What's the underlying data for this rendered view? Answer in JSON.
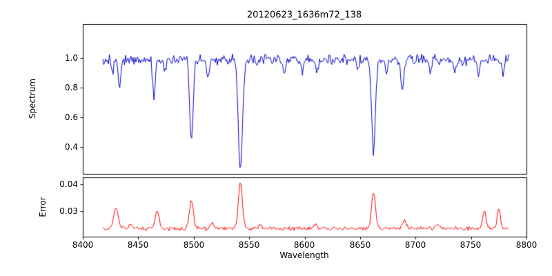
{
  "chart_data": {
    "type": "line",
    "title": "20120623_1636m72_138",
    "xlabel": "Wavelength",
    "xlim": [
      8400,
      8800
    ],
    "x_tick_labels": [
      "8400",
      "8450",
      "8500",
      "8550",
      "8600",
      "8650",
      "8700",
      "8750",
      "8800"
    ],
    "grid": false,
    "legend": "none",
    "subplots": [
      {
        "name": "spectrum",
        "ylabel": "Spectrum",
        "ylim": [
          0.22,
          1.23
        ],
        "y_tick_labels": [
          "1.0",
          "0.8",
          "0.6",
          "0.4"
        ],
        "y_ticks": [
          1.0,
          0.8,
          0.6,
          0.4
        ],
        "line_color": "#0000cd",
        "x_start": 8418,
        "x_end": 8784,
        "n_points": 430,
        "continuum": 0.99,
        "noise_amplitude": 0.045,
        "absorption_lines": [
          {
            "center": 8427.0,
            "depth": 0.1,
            "width": 1.0
          },
          {
            "center": 8433.0,
            "depth": 0.17,
            "width": 1.2
          },
          {
            "center": 8464.0,
            "depth": 0.24,
            "width": 1.1
          },
          {
            "center": 8474.0,
            "depth": 0.1,
            "width": 1.0
          },
          {
            "center": 8498.0,
            "depth": 0.54,
            "width": 1.5
          },
          {
            "center": 8513.0,
            "depth": 0.13,
            "width": 1.0
          },
          {
            "center": 8542.1,
            "depth": 0.73,
            "width": 1.9
          },
          {
            "center": 8582.0,
            "depth": 0.1,
            "width": 1.0
          },
          {
            "center": 8598.0,
            "depth": 0.09,
            "width": 1.0
          },
          {
            "center": 8611.0,
            "depth": 0.1,
            "width": 1.0
          },
          {
            "center": 8648.0,
            "depth": 0.08,
            "width": 1.0
          },
          {
            "center": 8662.1,
            "depth": 0.63,
            "width": 1.7
          },
          {
            "center": 8674.0,
            "depth": 0.1,
            "width": 1.0
          },
          {
            "center": 8688.0,
            "depth": 0.24,
            "width": 1.2
          },
          {
            "center": 8713.0,
            "depth": 0.09,
            "width": 1.0
          },
          {
            "center": 8736.0,
            "depth": 0.08,
            "width": 1.0
          },
          {
            "center": 8757.0,
            "depth": 0.12,
            "width": 1.0
          },
          {
            "center": 8779.0,
            "depth": 0.12,
            "width": 1.0
          }
        ]
      },
      {
        "name": "error",
        "ylabel": "Error",
        "ylim": [
          0.0205,
          0.0425
        ],
        "y_tick_labels": [
          "0.04",
          "0.03"
        ],
        "y_ticks": [
          0.04,
          0.03
        ],
        "line_color": "#ff0000",
        "x_start": 8418,
        "x_end": 8784,
        "n_points": 430,
        "baseline": 0.0235,
        "noise_amplitude": 0.0009,
        "peaks": [
          {
            "center": 8430.0,
            "height": 0.0075,
            "width": 2.0
          },
          {
            "center": 8443.0,
            "height": 0.0015,
            "width": 1.5
          },
          {
            "center": 8467.0,
            "height": 0.0065,
            "width": 1.8
          },
          {
            "center": 8498.0,
            "height": 0.011,
            "width": 1.8
          },
          {
            "center": 8516.0,
            "height": 0.002,
            "width": 1.5
          },
          {
            "center": 8542.1,
            "height": 0.017,
            "width": 1.8
          },
          {
            "center": 8560.0,
            "height": 0.002,
            "width": 1.5
          },
          {
            "center": 8610.0,
            "height": 0.0015,
            "width": 1.5
          },
          {
            "center": 8662.1,
            "height": 0.013,
            "width": 1.8
          },
          {
            "center": 8690.0,
            "height": 0.003,
            "width": 1.5
          },
          {
            "center": 8720.0,
            "height": 0.0015,
            "width": 1.5
          },
          {
            "center": 8762.0,
            "height": 0.0065,
            "width": 1.5
          },
          {
            "center": 8775.0,
            "height": 0.007,
            "width": 1.5
          }
        ]
      }
    ]
  }
}
